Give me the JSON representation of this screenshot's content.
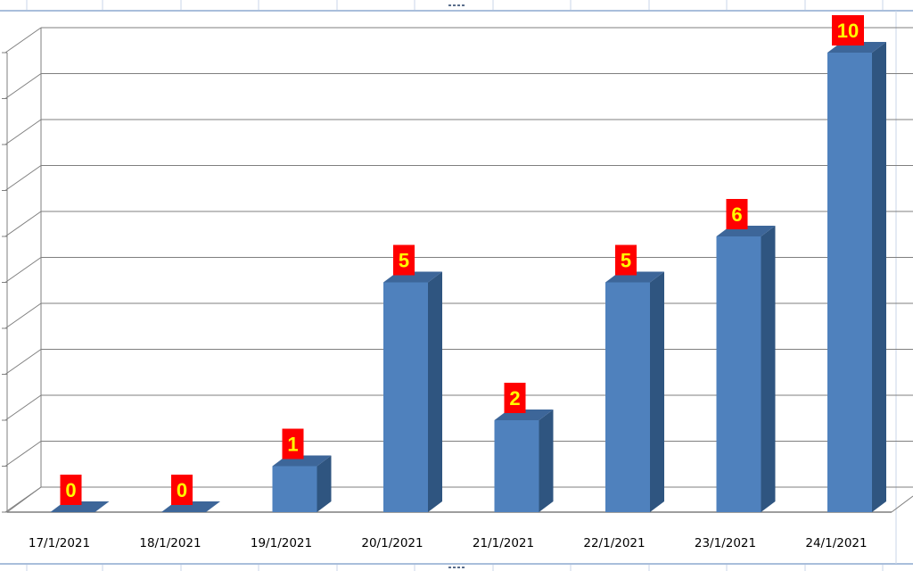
{
  "sheet": {
    "grid_color": "#c9d6e8",
    "border_color": "#a9bedb"
  },
  "chart_data": {
    "type": "bar",
    "style": "3d-column",
    "title": "",
    "xlabel": "",
    "ylabel": "",
    "categories": [
      "17/1/2021",
      "18/1/2021",
      "19/1/2021",
      "20/1/2021",
      "21/1/2021",
      "22/1/2021",
      "23/1/2021",
      "24/1/2021"
    ],
    "series": [
      {
        "values": [
          0,
          0,
          1,
          5,
          2,
          5,
          6,
          10
        ]
      }
    ],
    "ylim": [
      0,
      10.5
    ],
    "grid": true,
    "legend": "none",
    "colors": {
      "bar_front": "#4f81bd",
      "bar_side": "#2f5580",
      "bar_top": "#3d6699",
      "label_bg": "#ff0000",
      "label_text": "#ffff00",
      "gridline": "#7f7f7f"
    }
  }
}
